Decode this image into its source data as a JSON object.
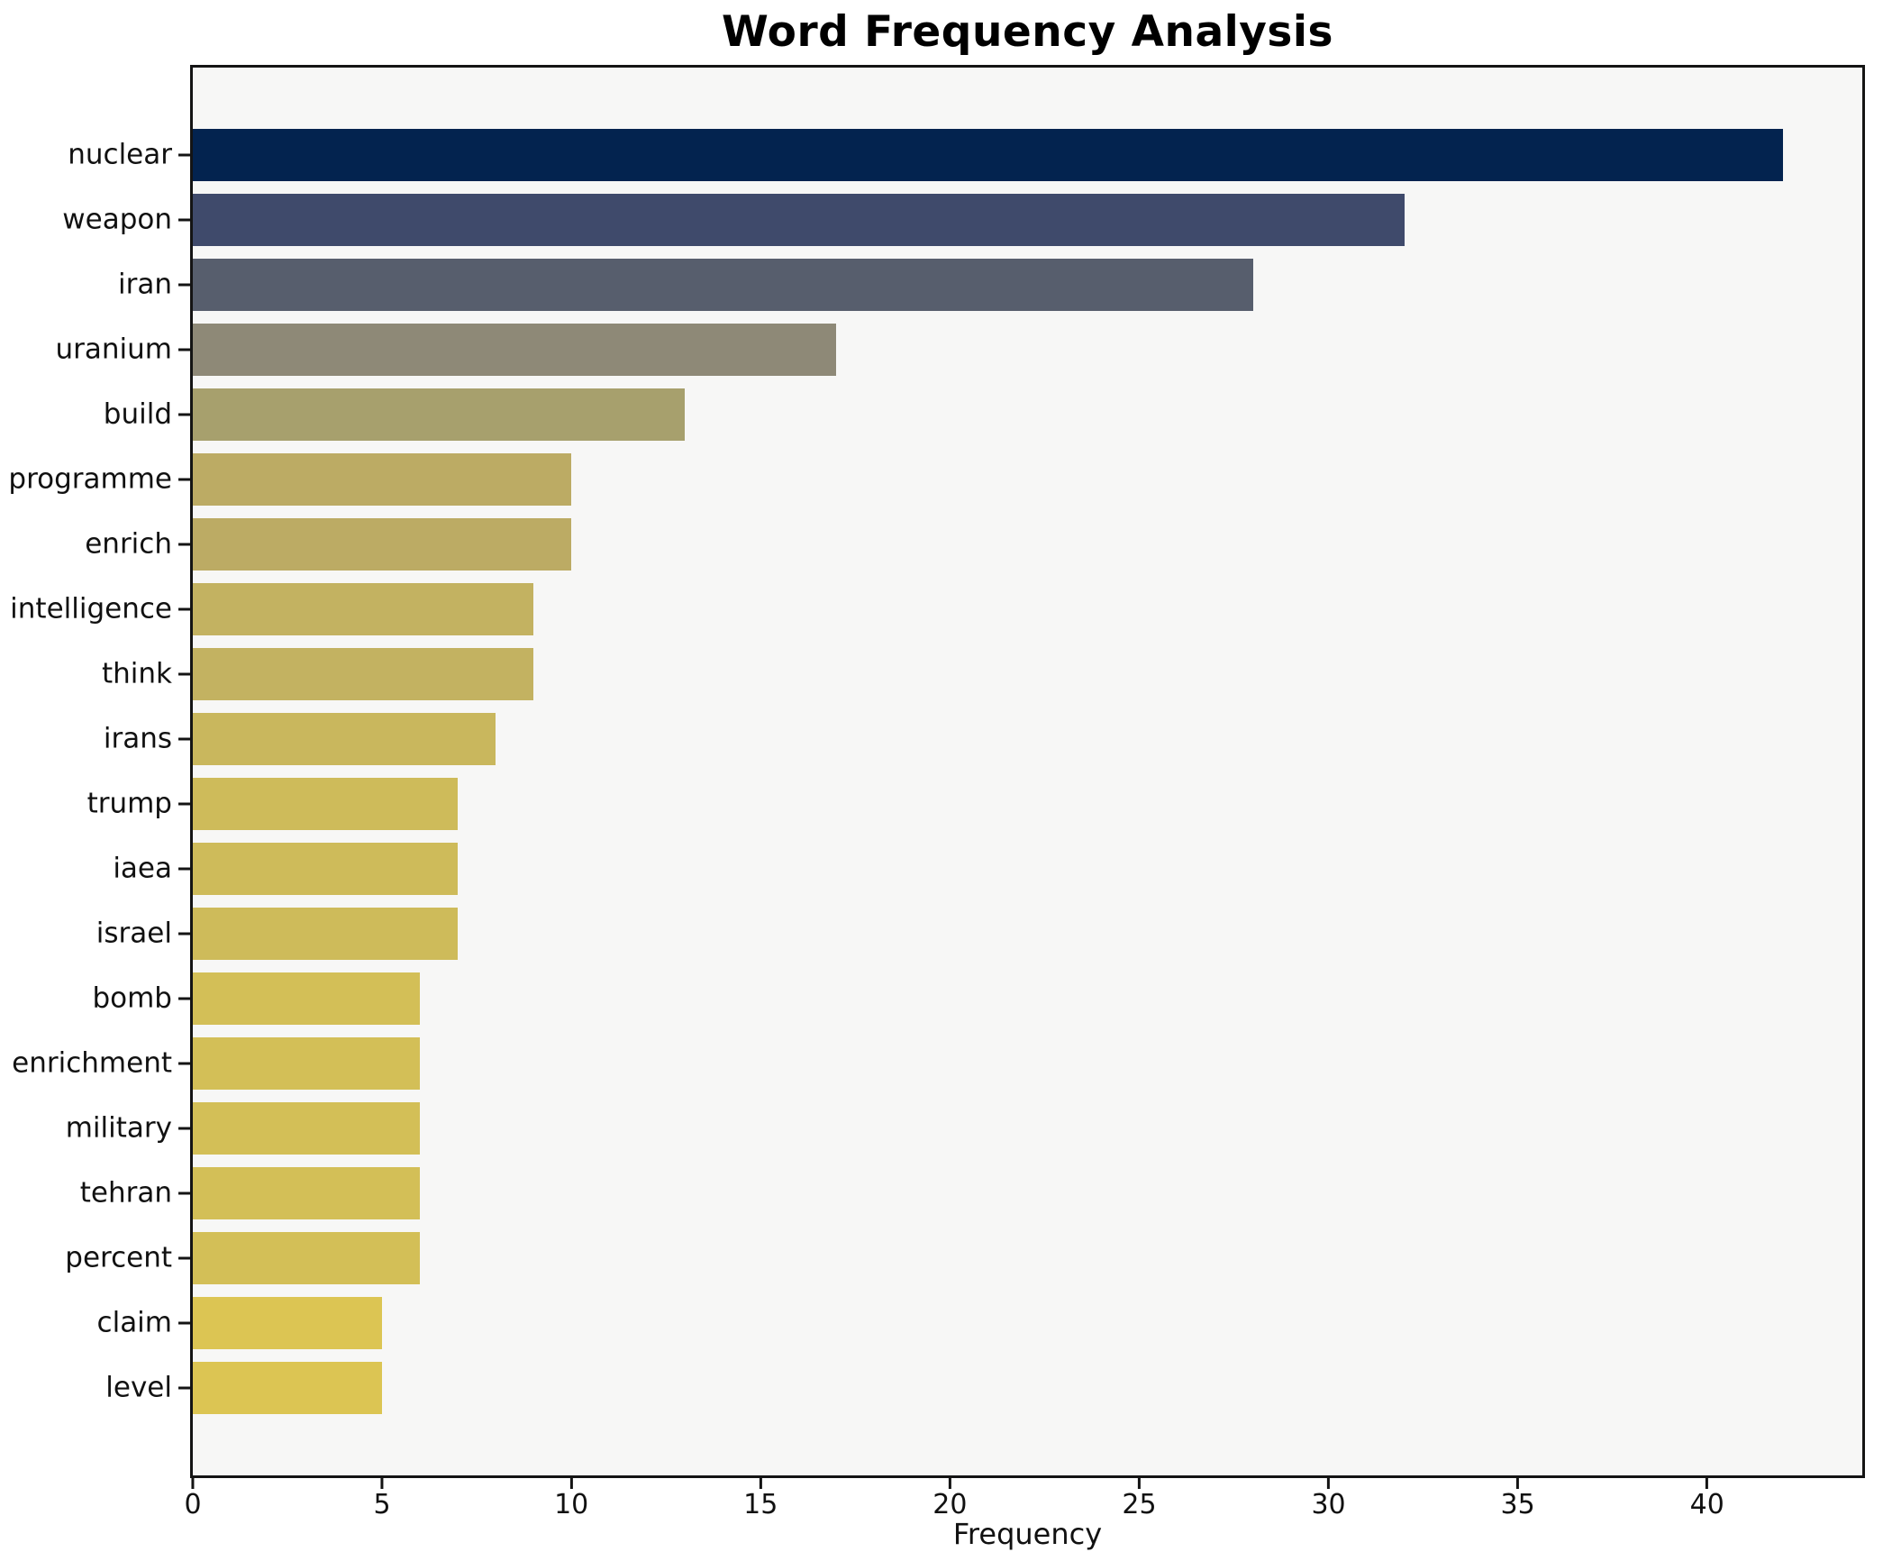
{
  "chart_data": {
    "type": "bar",
    "orientation": "horizontal",
    "title": "Word Frequency Analysis",
    "xlabel": "Frequency",
    "ylabel": "",
    "categories": [
      "nuclear",
      "weapon",
      "iran",
      "uranium",
      "build",
      "programme",
      "enrich",
      "intelligence",
      "think",
      "irans",
      "trump",
      "iaea",
      "israel",
      "bomb",
      "enrichment",
      "military",
      "tehran",
      "percent",
      "claim",
      "level"
    ],
    "values": [
      42,
      32,
      28,
      17,
      13,
      10,
      10,
      9,
      9,
      8,
      7,
      7,
      7,
      6,
      6,
      6,
      6,
      6,
      5,
      5
    ],
    "bar_colors": [
      "#03234f",
      "#3f4a6b",
      "#575e6d",
      "#8e8977",
      "#a7a06d",
      "#bcab64",
      "#bcab64",
      "#c3b261",
      "#c3b261",
      "#c9b75d",
      "#cebb5a",
      "#cebb5a",
      "#cebb5a",
      "#d3bf57",
      "#d3bf57",
      "#d3bf57",
      "#d3bf57",
      "#d3bf57",
      "#dcc553",
      "#dcc553"
    ],
    "xlim": [
      0,
      44.1
    ],
    "xticks": [
      0,
      5,
      10,
      15,
      20,
      25,
      30,
      35,
      40
    ],
    "grid": false,
    "legend_position": "none",
    "plot_background": "#f7f7f6",
    "figure_background": "#ffffff",
    "bar_height_fraction": 0.8
  }
}
